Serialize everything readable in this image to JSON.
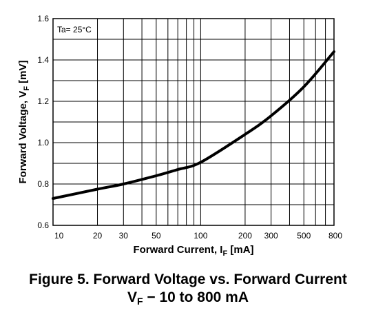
{
  "chart_data": {
    "type": "line",
    "x_scale": "log",
    "y_scale": "linear",
    "xlim": [
      10,
      800
    ],
    "ylim": [
      0.6,
      1.6
    ],
    "x_ticks": [
      10,
      20,
      30,
      50,
      100,
      200,
      300,
      500,
      800
    ],
    "x_tick_labels": [
      "10",
      "20",
      "30",
      "50",
      "100",
      "200",
      "300",
      "500",
      "800"
    ],
    "x_gridlines": [
      10,
      20,
      30,
      40,
      50,
      60,
      70,
      80,
      90,
      100,
      200,
      300,
      400,
      500,
      600,
      700,
      800
    ],
    "y_ticks": [
      0.6,
      0.8,
      1.0,
      1.2,
      1.4,
      1.6
    ],
    "y_tick_labels": [
      "0.6",
      "0.8",
      "1.0",
      "1.2",
      "1.4",
      "1.6"
    ],
    "y_gridlines": [
      0.6,
      0.7,
      0.8,
      0.9,
      1.0,
      1.1,
      1.2,
      1.3,
      1.4,
      1.5,
      1.6
    ],
    "grid": true,
    "xlabel": {
      "main": "Forward Current, I",
      "sub": "F",
      "tail": " [mA]"
    },
    "ylabel": {
      "main": "Forward Voltage, V",
      "sub": "F",
      "tail": " [mV]"
    },
    "annotation": "Ta= 25°C",
    "series": [
      {
        "x": [
          10,
          20,
          30,
          50,
          70,
          100,
          200,
          300,
          500,
          800
        ],
        "y": [
          0.73,
          0.775,
          0.8,
          0.84,
          0.87,
          0.905,
          1.04,
          1.13,
          1.27,
          1.44
        ]
      }
    ],
    "title": {
      "line1": "Figure 5. Forward Voltage vs. Forward Current",
      "line2_main": "V",
      "line2_sub": "F",
      "line2_tail": " − 10 to 800 mA"
    }
  },
  "colors": {
    "line": "#000000",
    "grid": "#000000",
    "background": "#ffffff"
  }
}
